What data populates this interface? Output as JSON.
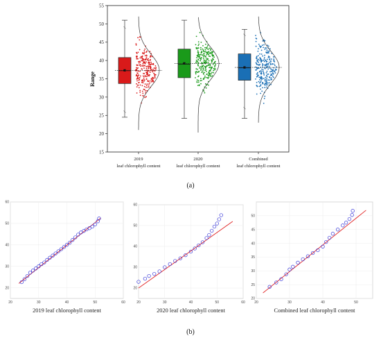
{
  "panel_labels": {
    "a": "(a)",
    "b": "(b)"
  },
  "chart_data": [
    {
      "type": "box",
      "ylabel": "Range",
      "ylim": [
        15,
        55
      ],
      "yticks": [
        15,
        20,
        25,
        30,
        35,
        40,
        45,
        50,
        55
      ],
      "categories": [
        {
          "line1": "2019",
          "line2": "leaf chlorophyll content"
        },
        {
          "line1": "2020",
          "line2": "leaf chlorophyll content"
        },
        {
          "line1": "Combined",
          "line2": "leaf chlorophyll content"
        }
      ],
      "series": [
        {
          "color": "#d91a1a",
          "min": 24.5,
          "q1": 33.7,
          "median": 37.2,
          "mean": 37.3,
          "q3": 40.8,
          "max": 51.0,
          "outliers": [
            26.0,
            49.0
          ],
          "points_min": 21.0,
          "points_max": 52.0
        },
        {
          "color": "#1a9a1a",
          "min": 24.2,
          "q1": 35.3,
          "median": 39.0,
          "mean": 39.2,
          "q3": 43.1,
          "max": 51.0,
          "outliers": [],
          "points_min": 20.3,
          "points_max": 52.0
        },
        {
          "color": "#1a6fb5",
          "min": 24.2,
          "q1": 34.6,
          "median": 38.0,
          "mean": 38.1,
          "q3": 41.8,
          "max": 48.5,
          "outliers": [
            27.0,
            47.0
          ],
          "points_min": 23.0,
          "points_max": 52.0
        }
      ],
      "grid": false
    },
    {
      "type": "scatter",
      "xlabel": "2019 leaf chlorophyll content",
      "xlim": [
        20,
        60
      ],
      "ylim": [
        15,
        60
      ],
      "xticks": [
        20,
        30,
        40,
        50,
        60
      ],
      "yticks": [
        20,
        30,
        40,
        50,
        60
      ],
      "line": [
        [
          23.0,
          22.0
        ],
        [
          52.0,
          52.5
        ]
      ],
      "points": [
        [
          24.0,
          22.6
        ],
        [
          25.0,
          24.0
        ],
        [
          26.0,
          25.5
        ],
        [
          27.0,
          27.0
        ],
        [
          28.0,
          28.0
        ],
        [
          29.0,
          29.0
        ],
        [
          30.0,
          30.0
        ],
        [
          31.0,
          31.0
        ],
        [
          32.0,
          31.8
        ],
        [
          33.0,
          33.0
        ],
        [
          34.0,
          34.0
        ],
        [
          35.0,
          35.0
        ],
        [
          36.0,
          36.0
        ],
        [
          37.0,
          37.0
        ],
        [
          38.0,
          38.0
        ],
        [
          39.0,
          39.0
        ],
        [
          40.0,
          40.0
        ],
        [
          41.0,
          41.0
        ],
        [
          42.0,
          42.3
        ],
        [
          43.0,
          43.5
        ],
        [
          44.0,
          44.8
        ],
        [
          45.0,
          45.8
        ],
        [
          46.0,
          46.5
        ],
        [
          47.0,
          47.2
        ],
        [
          48.0,
          47.8
        ],
        [
          49.0,
          48.5
        ],
        [
          50.0,
          49.5
        ],
        [
          51.0,
          51.0
        ],
        [
          51.4,
          52.3
        ]
      ]
    },
    {
      "type": "scatter",
      "xlabel": "2020 leaf chlorophyll content",
      "xlim": [
        20,
        60
      ],
      "ylim": [
        15,
        60
      ],
      "xticks": [
        20,
        30,
        40,
        50,
        60
      ],
      "yticks": [
        20,
        30,
        40,
        50,
        60
      ],
      "line": [
        [
          20.0,
          20.0
        ],
        [
          56.0,
          52.0
        ]
      ],
      "points": [
        [
          20.0,
          23.0
        ],
        [
          22.5,
          24.5
        ],
        [
          24.0,
          25.8
        ],
        [
          26.0,
          26.8
        ],
        [
          28.0,
          28.0
        ],
        [
          30.0,
          30.0
        ],
        [
          32.0,
          31.5
        ],
        [
          34.0,
          33.0
        ],
        [
          36.0,
          34.3
        ],
        [
          38.0,
          35.8
        ],
        [
          40.0,
          37.5
        ],
        [
          41.5,
          39.0
        ],
        [
          43.0,
          40.5
        ],
        [
          44.5,
          42.0
        ],
        [
          46.0,
          44.0
        ],
        [
          47.0,
          45.5
        ],
        [
          48.0,
          47.5
        ],
        [
          49.0,
          49.5
        ],
        [
          50.0,
          51.0
        ],
        [
          50.8,
          53.0
        ],
        [
          51.6,
          55.0
        ]
      ]
    },
    {
      "type": "scatter",
      "xlabel": "Combined leaf chlorophyll content",
      "xlim": [
        20,
        55
      ],
      "ylim": [
        20,
        55
      ],
      "xticks": [
        20,
        30,
        40,
        50
      ],
      "yticks": [
        20,
        25,
        30,
        35,
        40,
        45,
        50
      ],
      "line": [
        [
          22.0,
          22.0
        ],
        [
          53.0,
          52.0
        ]
      ],
      "points": [
        [
          24.0,
          24.2
        ],
        [
          26.0,
          25.8
        ],
        [
          27.5,
          27.0
        ],
        [
          29.0,
          28.8
        ],
        [
          30.0,
          30.5
        ],
        [
          31.0,
          31.5
        ],
        [
          32.5,
          33.0
        ],
        [
          34.0,
          34.2
        ],
        [
          35.5,
          35.3
        ],
        [
          37.0,
          36.5
        ],
        [
          38.5,
          37.5
        ],
        [
          40.0,
          38.8
        ],
        [
          41.0,
          40.5
        ],
        [
          42.0,
          42.0
        ],
        [
          43.0,
          43.5
        ],
        [
          44.5,
          45.0
        ],
        [
          46.0,
          46.5
        ],
        [
          47.0,
          47.5
        ],
        [
          48.0,
          48.8
        ],
        [
          48.8,
          50.3
        ],
        [
          49.0,
          51.8
        ]
      ]
    }
  ]
}
